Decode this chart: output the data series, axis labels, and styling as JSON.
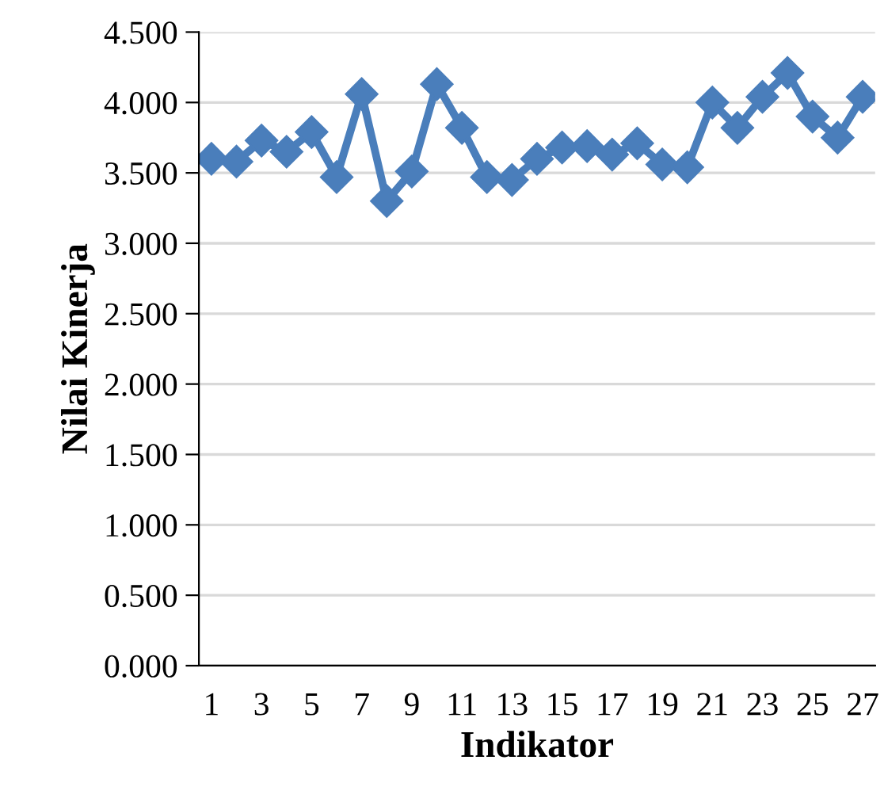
{
  "chart_data": {
    "type": "line",
    "xlabel": "Indikator",
    "ylabel": "Nilai Kinerja",
    "categories": [
      "1",
      null,
      "3",
      null,
      "5",
      null,
      "7",
      null,
      "9",
      null,
      "11",
      null,
      "13",
      null,
      "15",
      null,
      "17",
      null,
      "19",
      null,
      "21",
      null,
      "23",
      null,
      "25",
      null,
      "27"
    ],
    "series": [
      {
        "color": "#4a7ebb",
        "values": [
          3.6,
          3.58,
          3.73,
          3.65,
          3.79,
          3.47,
          4.06,
          3.3,
          3.51,
          4.13,
          3.82,
          3.47,
          3.45,
          3.6,
          3.68,
          3.69,
          3.63,
          3.71,
          3.56,
          3.54,
          4.0,
          3.82,
          4.04,
          4.21,
          3.9,
          3.75,
          4.04
        ]
      }
    ],
    "ylim": [
      0,
      4.5
    ],
    "yticks": [
      {
        "value": 0,
        "label": "0.000"
      },
      {
        "value": 0.5,
        "label": "0.500"
      },
      {
        "value": 1,
        "label": "1.000"
      },
      {
        "value": 1.5,
        "label": "1.500"
      },
      {
        "value": 2,
        "label": "2.000"
      },
      {
        "value": 2.5,
        "label": "2.500"
      },
      {
        "value": 3,
        "label": "3.000"
      },
      {
        "value": 3.5,
        "label": "3.500"
      },
      {
        "value": 4,
        "label": "4.000"
      },
      {
        "value": 4.5,
        "label": "4.500"
      }
    ],
    "grid": "y",
    "marker": "diamond",
    "line_style": "solid"
  }
}
